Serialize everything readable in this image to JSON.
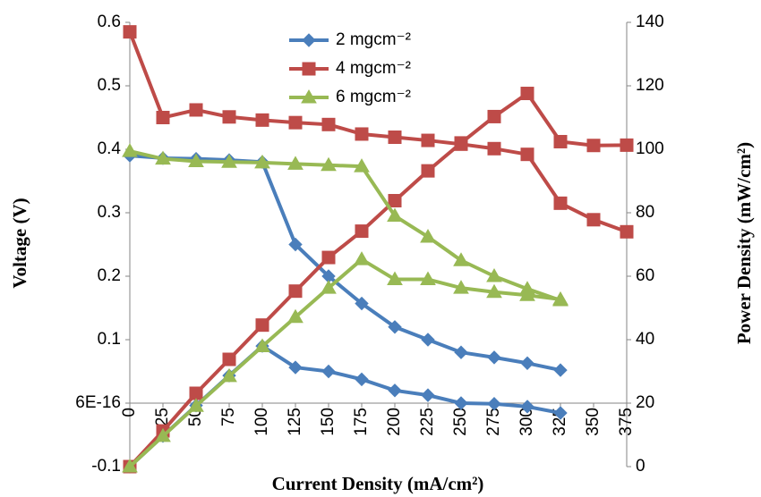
{
  "chart_data": {
    "type": "line",
    "xlabel": "Current Density (mA/cm²)",
    "ylabel": "Voltage (V)",
    "y2label": "Power Density (mW/cm²)",
    "x": [
      0,
      25,
      50,
      75,
      100,
      125,
      150,
      175,
      200,
      225,
      250,
      275,
      300,
      325,
      350,
      375
    ],
    "ylim": [
      -0.1,
      0.6
    ],
    "yticks": [
      -0.1,
      {
        "value": 6e-16,
        "label": "6E-16"
      },
      0.1,
      0.2,
      0.3,
      0.4,
      0.5,
      0.6
    ],
    "y2lim": [
      0,
      140
    ],
    "y2ticks": [
      0,
      20,
      40,
      60,
      80,
      100,
      120,
      140
    ],
    "grid": false,
    "legend": "top",
    "series": [
      {
        "name": "2 mgcm⁻²",
        "color": "#4a7ebb",
        "marker": "diamond",
        "values": [
          0.39,
          0.386,
          0.385,
          0.383,
          0.38,
          0.25,
          0.2,
          0.157,
          0.12,
          0.1,
          0.08,
          0.072,
          0.063,
          0.052,
          null,
          null
        ],
        "power_values": [
          0,
          9.65,
          19.25,
          28.7,
          38,
          31.25,
          30,
          27.5,
          24,
          22.5,
          20,
          19.8,
          18.9,
          16.9,
          null,
          null
        ]
      },
      {
        "name": "4 mgcm⁻²",
        "color": "#be4b48",
        "marker": "square",
        "values": [
          0.585,
          0.45,
          0.462,
          0.451,
          0.446,
          0.442,
          0.439,
          0.424,
          0.419,
          0.414,
          0.408,
          0.401,
          0.392,
          0.315,
          0.289,
          0.27
        ],
        "power_values": [
          0,
          11.25,
          23.1,
          33.8,
          44.6,
          55.3,
          65.9,
          74.2,
          83.8,
          93.2,
          102,
          110.3,
          117.6,
          102.4,
          101.2,
          101.3
        ]
      },
      {
        "name": "6 mgcm⁻²",
        "color": "#98b954",
        "marker": "triangle",
        "values": [
          0.397,
          0.385,
          0.381,
          0.38,
          0.379,
          0.377,
          0.375,
          0.373,
          0.295,
          0.262,
          0.225,
          0.2,
          0.18,
          0.162,
          null,
          null
        ],
        "power_values": [
          0,
          9.6,
          19.1,
          28.5,
          37.9,
          47.1,
          56.3,
          65.3,
          59,
          59,
          56.3,
          55,
          54,
          52.7,
          null,
          null
        ]
      }
    ]
  }
}
